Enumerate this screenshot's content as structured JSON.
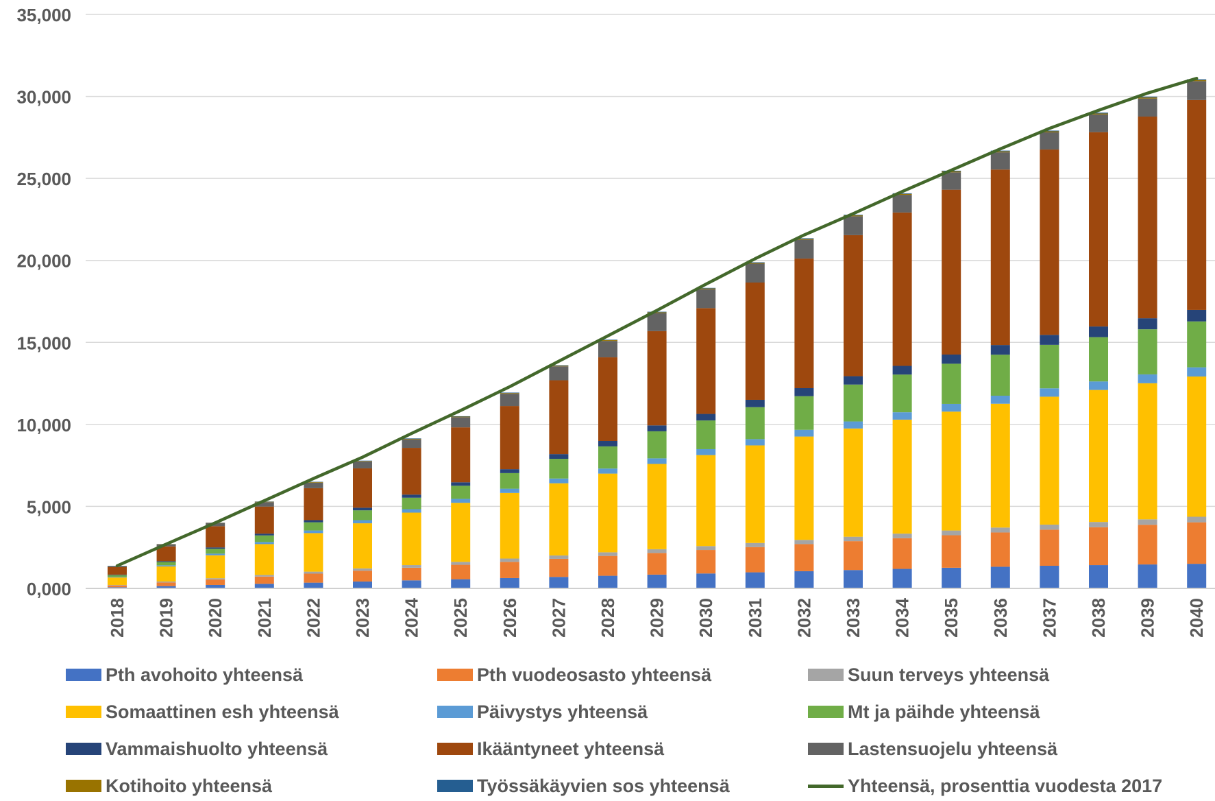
{
  "chart_data": {
    "type": "bar",
    "stacked": true,
    "categories": [
      "2018",
      "2019",
      "2020",
      "2021",
      "2022",
      "2023",
      "2024",
      "2025",
      "2026",
      "2027",
      "2028",
      "2029",
      "2030",
      "2031",
      "2032",
      "2033",
      "2034",
      "2035",
      "2036",
      "2037",
      "2038",
      "2039",
      "2040"
    ],
    "y_tick_labels": [
      "0,000",
      "5,000",
      "10,000",
      "15,000",
      "20,000",
      "25,000",
      "30,000",
      "35,000"
    ],
    "ylim": [
      0,
      35000
    ],
    "grid": true,
    "legend_position": "bottom",
    "series": [
      {
        "name": "Pth avohoito yhteensä",
        "color": "#4472C4",
        "values": [
          70,
          140,
          210,
          280,
          350,
          420,
          490,
          560,
          630,
          700,
          770,
          840,
          910,
          980,
          1050,
          1120,
          1190,
          1260,
          1320,
          1380,
          1420,
          1460,
          1500
        ]
      },
      {
        "name": "Pth vuodeosasto yhteensä",
        "color": "#ED7D31",
        "values": [
          110,
          220,
          330,
          440,
          550,
          660,
          770,
          880,
          990,
          1100,
          1210,
          1320,
          1430,
          1540,
          1650,
          1760,
          1870,
          1980,
          2090,
          2200,
          2310,
          2420,
          2530
        ]
      },
      {
        "name": "Suun terveys yhteensä",
        "color": "#A5A5A5",
        "values": [
          30,
          60,
          80,
          100,
          120,
          140,
          160,
          180,
          200,
          210,
          220,
          230,
          240,
          250,
          260,
          270,
          280,
          290,
          300,
          310,
          320,
          330,
          340
        ]
      },
      {
        "name": "Somaattinen esh yhteensä",
        "color": "#FFC000",
        "values": [
          460,
          920,
          1400,
          1880,
          2350,
          2750,
          3200,
          3600,
          4000,
          4400,
          4800,
          5200,
          5550,
          5950,
          6300,
          6600,
          6950,
          7250,
          7550,
          7800,
          8050,
          8300,
          8550
        ]
      },
      {
        "name": "Päivystys yhteensä",
        "color": "#5B9BD5",
        "values": [
          40,
          70,
          100,
          130,
          160,
          190,
          210,
          240,
          260,
          290,
          310,
          340,
          360,
          380,
          410,
          430,
          450,
          470,
          490,
          510,
          520,
          540,
          560
        ]
      },
      {
        "name": "Mt ja päihde yhteensä",
        "color": "#70AD47",
        "values": [
          100,
          200,
          300,
          400,
          500,
          600,
          700,
          800,
          950,
          1200,
          1350,
          1650,
          1750,
          1950,
          2050,
          2250,
          2300,
          2450,
          2500,
          2650,
          2700,
          2750,
          2800
        ]
      },
      {
        "name": "Vammaishuolto yhteensä",
        "color": "#264478",
        "values": [
          30,
          50,
          80,
          110,
          130,
          160,
          190,
          210,
          240,
          290,
          330,
          360,
          400,
          450,
          490,
          510,
          530,
          560,
          590,
          610,
          650,
          670,
          700
        ]
      },
      {
        "name": "Ikääntyneet yhteensä",
        "color": "#9E480E",
        "values": [
          460,
          900,
          1290,
          1650,
          1950,
          2400,
          2850,
          3350,
          3850,
          4500,
          5100,
          5750,
          6450,
          7150,
          7900,
          8600,
          9350,
          10050,
          10700,
          11300,
          11850,
          12300,
          12800
        ]
      },
      {
        "name": "Lastensuojelu yhteensä",
        "color": "#636363",
        "values": [
          60,
          120,
          190,
          270,
          340,
          420,
          520,
          620,
          750,
          850,
          1000,
          1100,
          1150,
          1150,
          1150,
          1150,
          1080,
          1060,
          1050,
          1050,
          1080,
          1100,
          1150
        ]
      },
      {
        "name": "Kotihoito yhteensä",
        "color": "#997300",
        "values": [
          10,
          15,
          20,
          25,
          30,
          30,
          35,
          35,
          40,
          40,
          45,
          45,
          50,
          50,
          50,
          55,
          55,
          55,
          60,
          60,
          60,
          65,
          65
        ]
      },
      {
        "name": "Työssäkäyvien sos yhteensä",
        "color": "#255E91",
        "values": [
          10,
          10,
          15,
          15,
          20,
          20,
          25,
          25,
          30,
          30,
          30,
          35,
          35,
          35,
          40,
          40,
          40,
          45,
          45,
          45,
          50,
          50,
          50
        ]
      }
    ],
    "line_series": {
      "name": "Yhteensä, prosenttia vuodesta 2017",
      "color": "#43682B",
      "values": [
        1380,
        2700,
        4000,
        5350,
        6700,
        8000,
        9450,
        10850,
        12300,
        13850,
        15400,
        16950,
        18550,
        20100,
        21550,
        22850,
        24200,
        25500,
        26800,
        28050,
        29150,
        30200,
        31100
      ]
    }
  }
}
